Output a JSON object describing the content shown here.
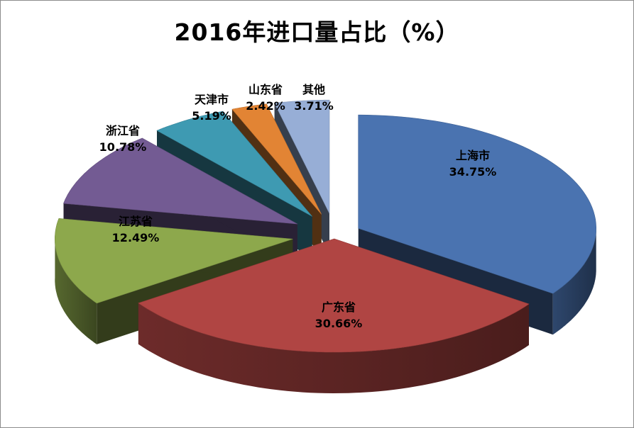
{
  "chart_data": {
    "type": "pie",
    "title": "2016年进口量占比（%）",
    "legend": "none",
    "style": "3d-exploded",
    "slices": [
      {
        "label": "上海市",
        "value": 34.75,
        "value_label": "34.75%",
        "color": "#4a73b0",
        "label_color": "#000000"
      },
      {
        "label": "广东省",
        "value": 30.66,
        "value_label": "30.66%",
        "color": "#b04543",
        "label_color": "#000000"
      },
      {
        "label": "江苏省",
        "value": 12.49,
        "value_label": "12.49%",
        "color": "#8da84c",
        "label_color": "#000000"
      },
      {
        "label": "浙江省",
        "value": 10.78,
        "value_label": "10.78%",
        "color": "#735b93",
        "label_color": "#000000"
      },
      {
        "label": "天津市",
        "value": 5.19,
        "value_label": "5.19%",
        "color": "#3e9ab2",
        "label_color": "#000000"
      },
      {
        "label": "山东省",
        "value": 2.42,
        "value_label": "2.42%",
        "color": "#e28434",
        "label_color": "#000000"
      },
      {
        "label": "其他",
        "value": 3.71,
        "value_label": "3.71%",
        "color": "#97aed6",
        "label_color": "#000000"
      }
    ]
  }
}
